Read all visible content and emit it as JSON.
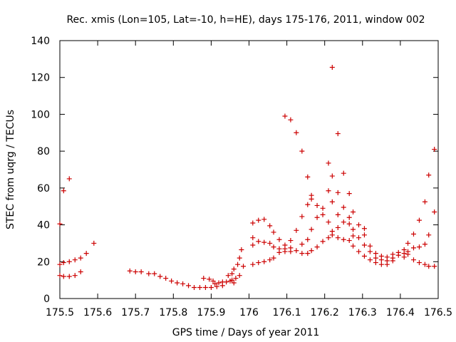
{
  "chart_data": {
    "type": "scatter",
    "title": "Rec. xmis (Lon=105, Lat=-10, h=HE), days 175-176, 2011, window 002",
    "xlabel": "GPS time / Days of year 2011",
    "ylabel": "STEC from uqrg / TECUs",
    "xlim": [
      175.5,
      176.5
    ],
    "ylim": [
      0,
      140
    ],
    "xticks": [
      175.5,
      175.6,
      175.7,
      175.8,
      175.9,
      176.0,
      176.1,
      176.2,
      176.3,
      176.4,
      176.5
    ],
    "xtick_labels": [
      "175.5",
      "175.6",
      "175.7",
      "175.8",
      "175.9",
      "176",
      "176.1",
      "176.2",
      "176.3",
      "176.4",
      "176.5"
    ],
    "yticks": [
      0,
      20,
      40,
      60,
      80,
      100,
      120,
      140
    ],
    "ytick_labels": [
      "0",
      "20",
      "40",
      "60",
      "80",
      "100",
      "120",
      "140"
    ],
    "marker": "+",
    "color": "#cc0000",
    "series": [
      {
        "name": "STEC",
        "points": [
          [
            175.5,
            40.5
          ],
          [
            175.5,
            18.5
          ],
          [
            175.5,
            12.5
          ],
          [
            175.51,
            58.5
          ],
          [
            175.51,
            19.5
          ],
          [
            175.51,
            12.0
          ],
          [
            175.525,
            65.0
          ],
          [
            175.525,
            20.0
          ],
          [
            175.525,
            12.0
          ],
          [
            175.54,
            21.0
          ],
          [
            175.54,
            12.5
          ],
          [
            175.555,
            22.0
          ],
          [
            175.555,
            14.5
          ],
          [
            175.57,
            24.5
          ],
          [
            175.59,
            30.0
          ],
          [
            175.685,
            15.0
          ],
          [
            175.7,
            14.5
          ],
          [
            175.715,
            14.5
          ],
          [
            175.735,
            13.5
          ],
          [
            175.75,
            13.5
          ],
          [
            175.765,
            12.0
          ],
          [
            175.78,
            11.0
          ],
          [
            175.795,
            9.5
          ],
          [
            175.81,
            8.5
          ],
          [
            175.825,
            8.0
          ],
          [
            175.84,
            7.0
          ],
          [
            175.855,
            6.0
          ],
          [
            175.87,
            6.0
          ],
          [
            175.885,
            6.0
          ],
          [
            175.9,
            6.0
          ],
          [
            175.915,
            6.5
          ],
          [
            175.93,
            7.0
          ],
          [
            175.88,
            11.0
          ],
          [
            175.895,
            10.5
          ],
          [
            175.905,
            9.5
          ],
          [
            175.91,
            8.0
          ],
          [
            175.92,
            8.5
          ],
          [
            175.93,
            9.0
          ],
          [
            175.94,
            9.0
          ],
          [
            175.95,
            9.5
          ],
          [
            175.955,
            10.0
          ],
          [
            175.96,
            8.5
          ],
          [
            175.965,
            11.0
          ],
          [
            175.945,
            12.5
          ],
          [
            175.955,
            13.5
          ],
          [
            175.96,
            16.0
          ],
          [
            175.97,
            18.5
          ],
          [
            175.975,
            22.0
          ],
          [
            175.98,
            26.5
          ],
          [
            175.985,
            17.5
          ],
          [
            175.975,
            12.5
          ],
          [
            176.01,
            41.0
          ],
          [
            176.01,
            33.0
          ],
          [
            176.01,
            29.0
          ],
          [
            176.01,
            18.5
          ],
          [
            176.025,
            42.5
          ],
          [
            176.025,
            31.0
          ],
          [
            176.025,
            19.5
          ],
          [
            176.04,
            43.0
          ],
          [
            176.04,
            30.5
          ],
          [
            176.04,
            20.0
          ],
          [
            176.055,
            39.5
          ],
          [
            176.055,
            30.0
          ],
          [
            176.055,
            21.0
          ],
          [
            176.065,
            36.0
          ],
          [
            176.065,
            28.0
          ],
          [
            176.065,
            22.0
          ],
          [
            176.08,
            32.0
          ],
          [
            176.08,
            27.0
          ],
          [
            176.08,
            25.0
          ],
          [
            176.095,
            99.0
          ],
          [
            176.095,
            29.0
          ],
          [
            176.095,
            27.0
          ],
          [
            176.095,
            25.5
          ],
          [
            176.11,
            97.0
          ],
          [
            176.11,
            31.5
          ],
          [
            176.11,
            27.5
          ],
          [
            176.11,
            25.5
          ],
          [
            176.125,
            90.0
          ],
          [
            176.125,
            37.0
          ],
          [
            176.125,
            26.0
          ],
          [
            176.14,
            80.0
          ],
          [
            176.14,
            44.5
          ],
          [
            176.14,
            29.5
          ],
          [
            176.14,
            24.5
          ],
          [
            176.155,
            66.0
          ],
          [
            176.155,
            51.0
          ],
          [
            176.155,
            32.0
          ],
          [
            176.155,
            24.5
          ],
          [
            176.165,
            56.0
          ],
          [
            176.165,
            54.0
          ],
          [
            176.165,
            37.5
          ],
          [
            176.165,
            26.0
          ],
          [
            176.18,
            50.5
          ],
          [
            176.18,
            44.0
          ],
          [
            176.18,
            28.0
          ],
          [
            176.195,
            49.0
          ],
          [
            176.195,
            45.5
          ],
          [
            176.195,
            31.0
          ],
          [
            176.21,
            73.5
          ],
          [
            176.21,
            58.5
          ],
          [
            176.21,
            41.5
          ],
          [
            176.21,
            33.0
          ],
          [
            176.22,
            125.5
          ],
          [
            176.22,
            66.5
          ],
          [
            176.22,
            52.5
          ],
          [
            176.22,
            36.5
          ],
          [
            176.22,
            34.5
          ],
          [
            176.235,
            89.5
          ],
          [
            176.235,
            57.5
          ],
          [
            176.235,
            45.5
          ],
          [
            176.235,
            38.5
          ],
          [
            176.235,
            33.0
          ],
          [
            176.25,
            68.0
          ],
          [
            176.25,
            49.5
          ],
          [
            176.25,
            41.5
          ],
          [
            176.25,
            32.0
          ],
          [
            176.265,
            57.0
          ],
          [
            176.265,
            44.0
          ],
          [
            176.265,
            40.5
          ],
          [
            176.265,
            31.5
          ],
          [
            176.275,
            47.0
          ],
          [
            176.275,
            37.5
          ],
          [
            176.275,
            34.0
          ],
          [
            176.275,
            28.5
          ],
          [
            176.29,
            40.0
          ],
          [
            176.29,
            33.0
          ],
          [
            176.29,
            25.5
          ],
          [
            176.305,
            38.0
          ],
          [
            176.305,
            34.5
          ],
          [
            176.305,
            29.0
          ],
          [
            176.305,
            23.0
          ],
          [
            176.32,
            28.5
          ],
          [
            176.32,
            25.5
          ],
          [
            176.32,
            21.0
          ],
          [
            176.335,
            24.5
          ],
          [
            176.335,
            22.0
          ],
          [
            176.335,
            19.5
          ],
          [
            176.35,
            23.0
          ],
          [
            176.35,
            21.0
          ],
          [
            176.35,
            18.5
          ],
          [
            176.365,
            22.5
          ],
          [
            176.365,
            20.5
          ],
          [
            176.365,
            18.5
          ],
          [
            176.38,
            24.0
          ],
          [
            176.38,
            22.0
          ],
          [
            176.38,
            20.5
          ],
          [
            176.395,
            25.0
          ],
          [
            176.395,
            23.5
          ],
          [
            176.41,
            26.5
          ],
          [
            176.41,
            24.5
          ],
          [
            176.41,
            22.5
          ],
          [
            176.42,
            30.0
          ],
          [
            176.42,
            25.5
          ],
          [
            176.42,
            24.0
          ],
          [
            176.435,
            35.0
          ],
          [
            176.435,
            27.5
          ],
          [
            176.435,
            21.0
          ],
          [
            176.45,
            42.5
          ],
          [
            176.45,
            28.0
          ],
          [
            176.45,
            19.5
          ],
          [
            176.465,
            52.5
          ],
          [
            176.465,
            29.5
          ],
          [
            176.465,
            18.5
          ],
          [
            176.475,
            67.0
          ],
          [
            176.475,
            34.5
          ],
          [
            176.475,
            17.5
          ],
          [
            176.49,
            81.0
          ],
          [
            176.49,
            47.0
          ],
          [
            176.49,
            17.5
          ]
        ]
      }
    ]
  }
}
